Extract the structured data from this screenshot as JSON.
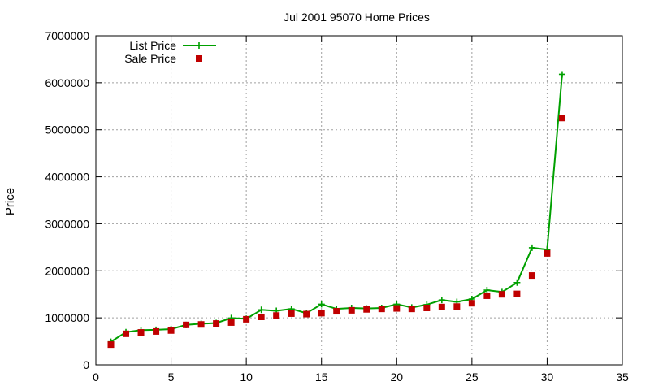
{
  "chart_data": {
    "type": "line",
    "title": "Jul 2001 95070 Home Prices",
    "xlabel": "",
    "ylabel": "Price",
    "xlim": [
      0,
      35
    ],
    "ylim": [
      0,
      7000000
    ],
    "xticks": [
      0,
      5,
      10,
      15,
      20,
      25,
      30,
      35
    ],
    "yticks": [
      0,
      1000000,
      2000000,
      3000000,
      4000000,
      5000000,
      6000000,
      7000000
    ],
    "grid": true,
    "legend_position": "top-left",
    "x": [
      1,
      2,
      3,
      4,
      5,
      6,
      7,
      8,
      9,
      10,
      11,
      12,
      13,
      14,
      15,
      16,
      17,
      18,
      19,
      20,
      21,
      22,
      23,
      24,
      25,
      26,
      27,
      28,
      29,
      30,
      31
    ],
    "series": [
      {
        "name": "List Price",
        "style": "line-with-plus-markers",
        "color": "#00a000",
        "values": [
          490000,
          695000,
          740000,
          745000,
          760000,
          850000,
          875000,
          890000,
          995000,
          980000,
          1170000,
          1150000,
          1190000,
          1100000,
          1290000,
          1190000,
          1210000,
          1200000,
          1210000,
          1290000,
          1220000,
          1280000,
          1380000,
          1340000,
          1400000,
          1590000,
          1550000,
          1750000,
          2490000,
          2450000,
          6180000
        ]
      },
      {
        "name": "Sale Price",
        "style": "square-markers",
        "color": "#c00000",
        "values": [
          430000,
          660000,
          690000,
          710000,
          730000,
          850000,
          860000,
          880000,
          900000,
          970000,
          1020000,
          1050000,
          1090000,
          1080000,
          1100000,
          1140000,
          1160000,
          1180000,
          1190000,
          1200000,
          1190000,
          1210000,
          1230000,
          1240000,
          1310000,
          1470000,
          1500000,
          1510000,
          1900000,
          2370000,
          5250000
        ]
      }
    ]
  }
}
